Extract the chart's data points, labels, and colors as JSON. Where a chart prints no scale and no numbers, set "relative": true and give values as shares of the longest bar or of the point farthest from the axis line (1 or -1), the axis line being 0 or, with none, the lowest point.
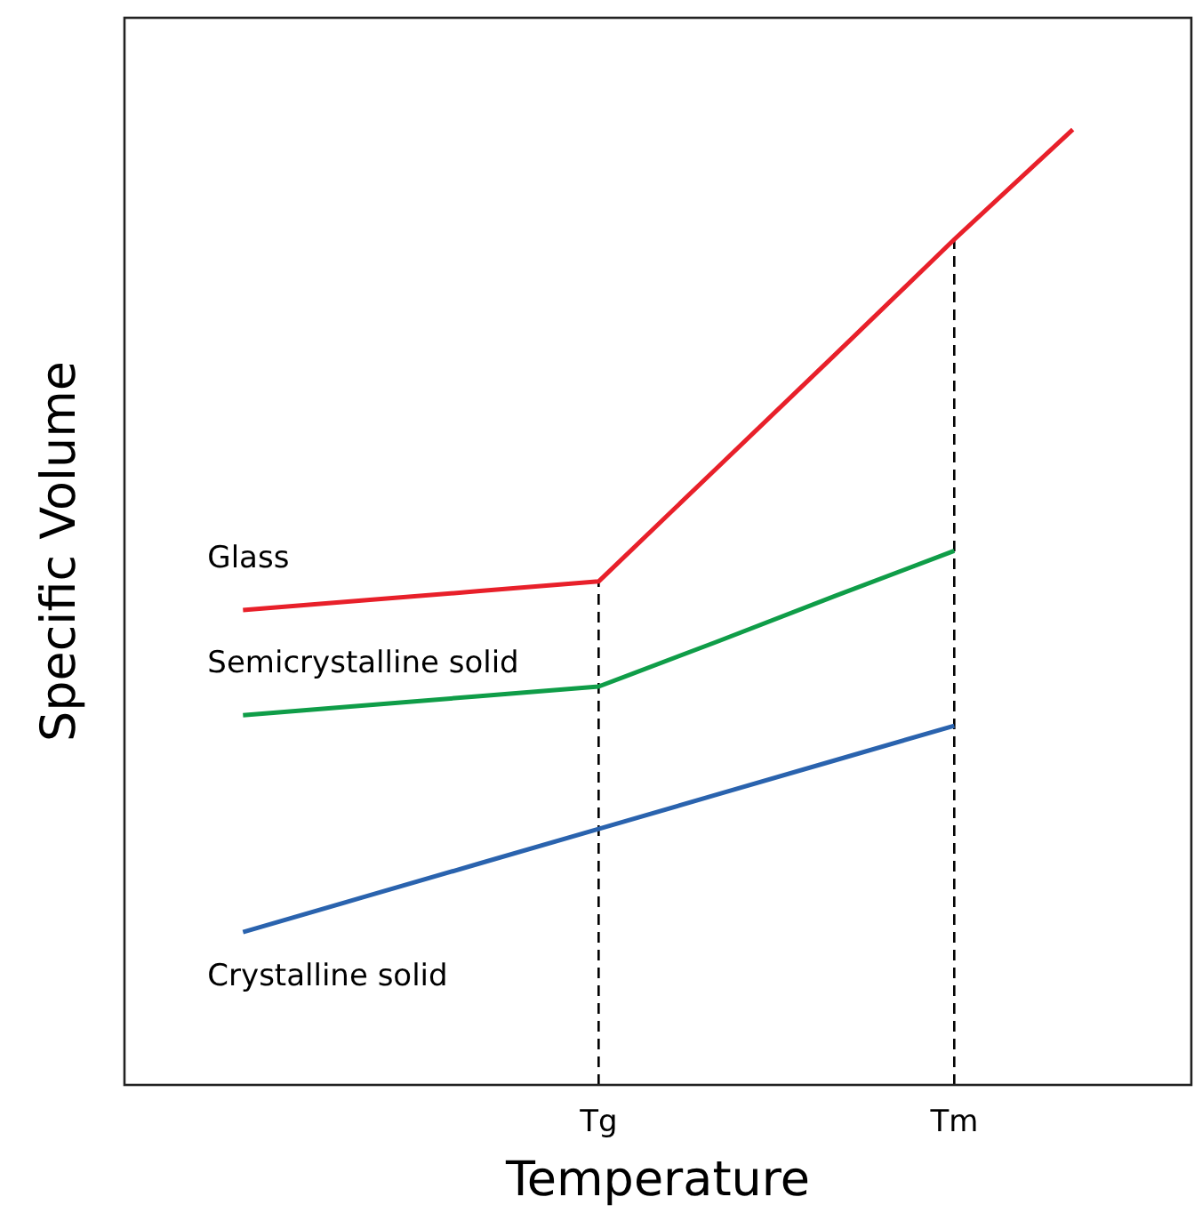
{
  "chart_data": {
    "type": "line",
    "xlabel": "Temperature",
    "ylabel": "Specific Volume",
    "relative": true,
    "grid": false,
    "marker": "none",
    "line_style": "solid",
    "categories": [
      null,
      null,
      null,
      "Tg",
      null,
      null,
      "Tm",
      null
    ],
    "series": [
      {
        "name": "Glass",
        "color": "#e8202a",
        "values": [
          0.497,
          0.507,
          0.517,
          0.527,
          0.646,
          0.765,
          0.885,
          1
        ]
      },
      {
        "name": "Semicrystalline solid",
        "color": "#0f9d48",
        "values": [
          0.387,
          0.397,
          0.407,
          0.417,
          0.464,
          0.512,
          0.559,
          null
        ]
      },
      {
        "name": "Crystalline solid",
        "color": "#2a63ae",
        "values": [
          0.16,
          0.196,
          0.232,
          0.268,
          0.304,
          0.34,
          0.376,
          null
        ]
      }
    ],
    "ref_lines": [
      {
        "axis": "x",
        "value": "Tg",
        "color": "#000000",
        "line_style": "dashed"
      },
      {
        "axis": "x",
        "value": "Tm",
        "color": "#000000",
        "line_style": "dashed"
      }
    ]
  }
}
